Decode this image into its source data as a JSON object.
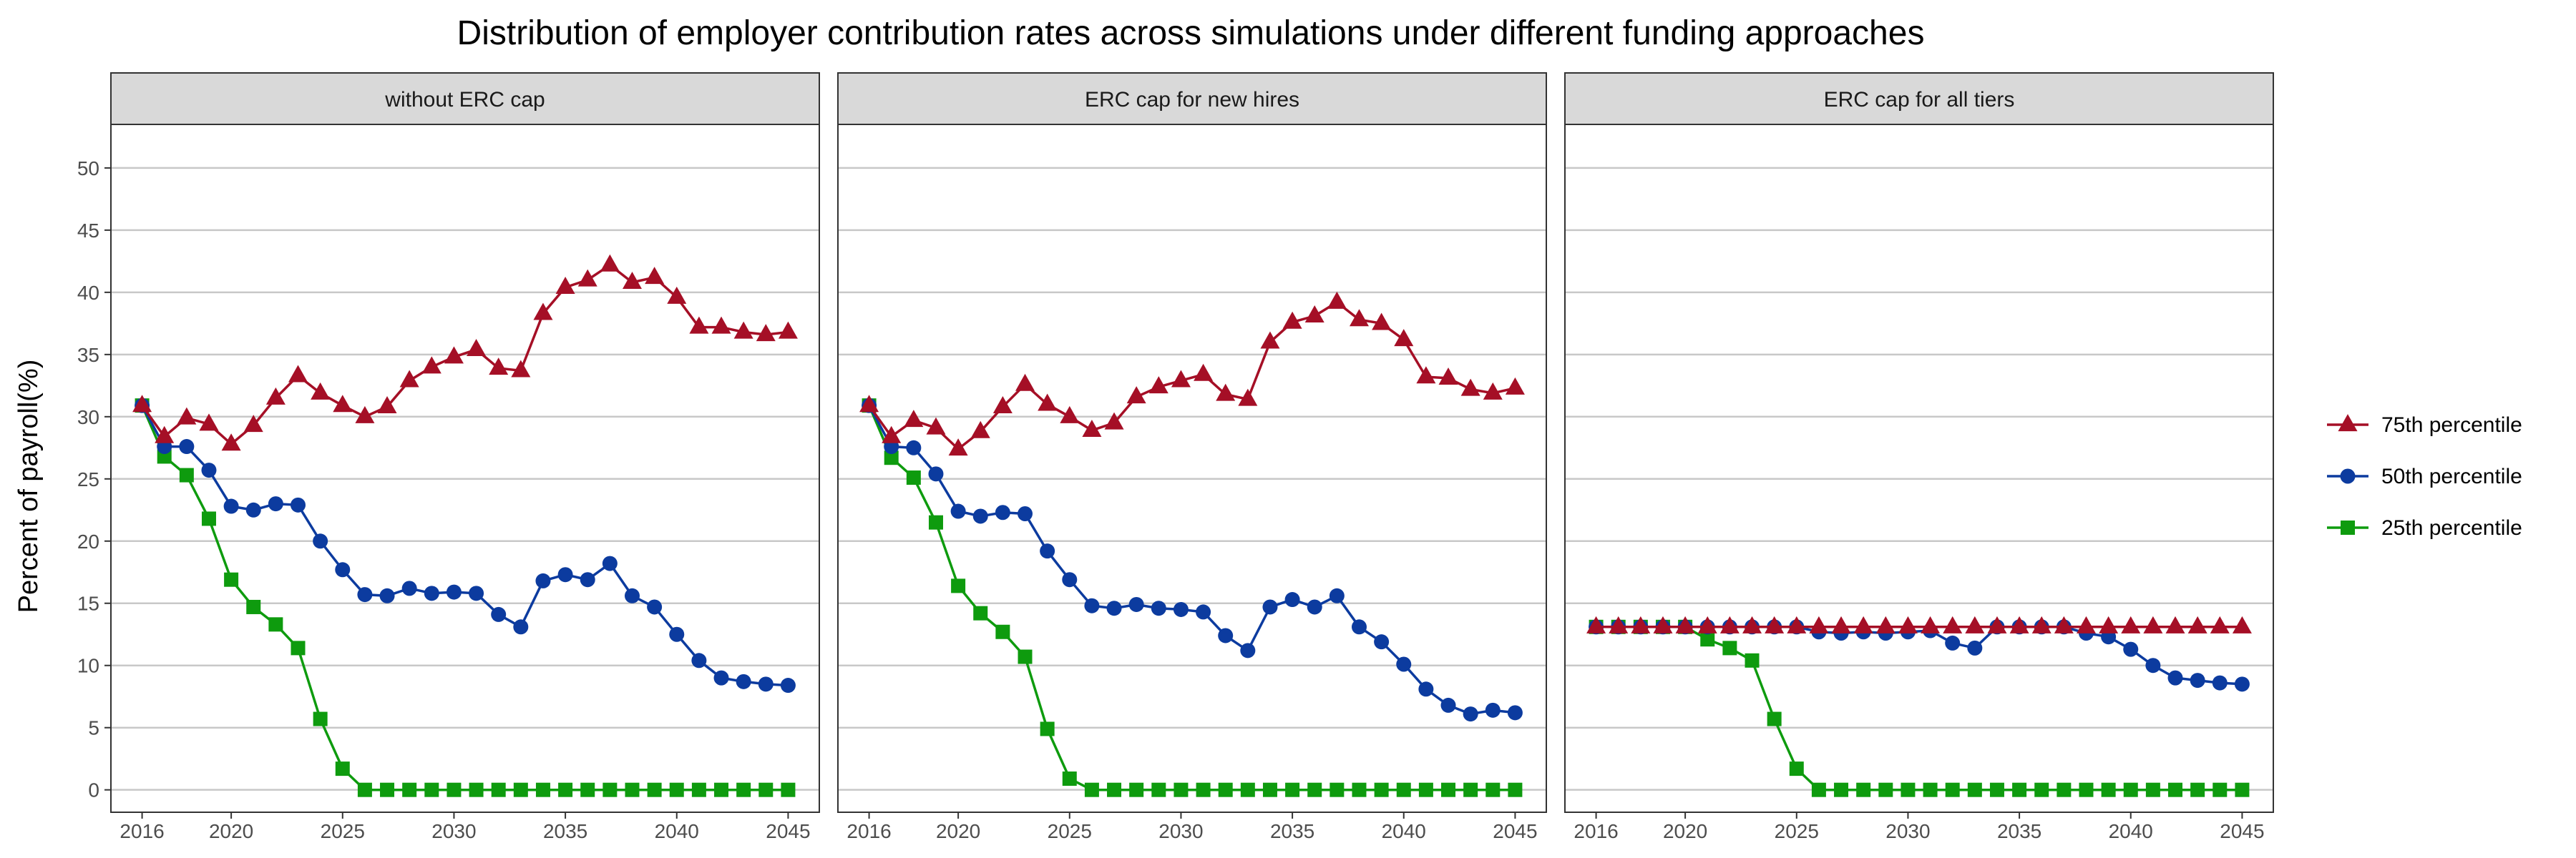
{
  "chart_data": {
    "type": "line",
    "title": "Distribution of employer contribution rates across simulations under different funding approaches",
    "ylabel": "Percent of payroll(%)",
    "xlabel": "",
    "ylim": [
      -1.8,
      53.5
    ],
    "xlim": [
      2014.6,
      2046.4
    ],
    "yticks": [
      0,
      5,
      10,
      15,
      20,
      25,
      30,
      35,
      40,
      45,
      50
    ],
    "xticks": [
      2016,
      2020,
      2025,
      2030,
      2035,
      2040,
      2045
    ],
    "grid": "horizontal",
    "legend_position": "right",
    "x": [
      2016,
      2017,
      2018,
      2019,
      2020,
      2021,
      2022,
      2023,
      2024,
      2025,
      2026,
      2027,
      2028,
      2029,
      2030,
      2031,
      2032,
      2033,
      2034,
      2035,
      2036,
      2037,
      2038,
      2039,
      2040,
      2041,
      2042,
      2043,
      2044,
      2045
    ],
    "series_styles": [
      {
        "name": "75th percentile",
        "color": "#A50F26",
        "marker": "triangle"
      },
      {
        "name": "50th percentile",
        "color": "#0C3B9F",
        "marker": "circle"
      },
      {
        "name": "25th percentile",
        "color": "#0E9B0E",
        "marker": "square"
      }
    ],
    "panels": [
      {
        "label": "without ERC cap",
        "series": [
          {
            "name": "75th percentile",
            "values": [
              30.9,
              28.4,
              29.9,
              29.4,
              27.8,
              29.3,
              31.5,
              33.3,
              31.9,
              30.9,
              30.0,
              30.8,
              32.9,
              34.0,
              34.8,
              35.4,
              33.9,
              33.7,
              38.3,
              40.4,
              41.0,
              42.2,
              40.8,
              41.2,
              39.6,
              37.2,
              37.2,
              36.8,
              36.6,
              36.8
            ]
          },
          {
            "name": "50th percentile",
            "values": [
              30.9,
              27.6,
              27.6,
              25.7,
              22.8,
              22.5,
              23.0,
              22.9,
              20.0,
              17.7,
              15.7,
              15.6,
              16.2,
              15.8,
              15.9,
              15.8,
              14.1,
              13.1,
              16.8,
              17.3,
              16.9,
              18.2,
              15.6,
              14.7,
              12.5,
              10.4,
              9.0,
              8.7,
              8.5,
              8.4
            ]
          },
          {
            "name": "25th percentile",
            "values": [
              30.9,
              26.8,
              25.3,
              21.8,
              16.9,
              14.7,
              13.3,
              11.4,
              5.7,
              1.7,
              0,
              0,
              0,
              0,
              0,
              0,
              0,
              0,
              0,
              0,
              0,
              0,
              0,
              0,
              0,
              0,
              0,
              0,
              0,
              0
            ]
          }
        ]
      },
      {
        "label": "ERC cap for new hires",
        "series": [
          {
            "name": "75th percentile",
            "values": [
              30.9,
              28.4,
              29.7,
              29.1,
              27.4,
              28.8,
              30.8,
              32.6,
              31.0,
              30.0,
              28.9,
              29.5,
              31.6,
              32.4,
              32.9,
              33.4,
              31.8,
              31.4,
              36.0,
              37.6,
              38.1,
              39.2,
              37.8,
              37.5,
              36.2,
              33.2,
              33.1,
              32.2,
              31.9,
              32.3
            ]
          },
          {
            "name": "50th percentile",
            "values": [
              30.9,
              27.6,
              27.5,
              25.4,
              22.4,
              22.0,
              22.3,
              22.2,
              19.2,
              16.9,
              14.8,
              14.6,
              14.9,
              14.6,
              14.5,
              14.3,
              12.4,
              11.2,
              14.7,
              15.3,
              14.7,
              15.6,
              13.1,
              11.9,
              10.1,
              8.1,
              6.8,
              6.1,
              6.4,
              6.2
            ]
          },
          {
            "name": "25th percentile",
            "values": [
              30.9,
              26.7,
              25.1,
              21.5,
              16.4,
              14.2,
              12.7,
              10.7,
              4.9,
              0.9,
              0,
              0,
              0,
              0,
              0,
              0,
              0,
              0,
              0,
              0,
              0,
              0,
              0,
              0,
              0,
              0,
              0,
              0,
              0,
              0
            ]
          }
        ]
      },
      {
        "label": "ERC cap for all tiers",
        "series": [
          {
            "name": "75th percentile",
            "values": [
              13.1,
              13.1,
              13.1,
              13.1,
              13.1,
              13.1,
              13.1,
              13.1,
              13.1,
              13.1,
              13.1,
              13.1,
              13.1,
              13.1,
              13.1,
              13.1,
              13.1,
              13.1,
              13.1,
              13.1,
              13.1,
              13.1,
              13.1,
              13.1,
              13.1,
              13.1,
              13.1,
              13.1,
              13.1,
              13.1
            ]
          },
          {
            "name": "50th percentile",
            "values": [
              13.1,
              13.1,
              13.1,
              13.1,
              13.1,
              13.1,
              13.1,
              13.1,
              13.1,
              13.1,
              12.7,
              12.6,
              12.7,
              12.6,
              12.7,
              12.8,
              11.8,
              11.4,
              13.1,
              13.1,
              13.1,
              13.1,
              12.6,
              12.3,
              11.3,
              10.0,
              9.0,
              8.8,
              8.6,
              8.5
            ]
          },
          {
            "name": "25th percentile",
            "values": [
              13.1,
              13.1,
              13.1,
              13.1,
              13.1,
              12.1,
              11.4,
              10.4,
              5.7,
              1.7,
              0,
              0,
              0,
              0,
              0,
              0,
              0,
              0,
              0,
              0,
              0,
              0,
              0,
              0,
              0,
              0,
              0,
              0,
              0,
              0
            ]
          }
        ]
      }
    ]
  }
}
